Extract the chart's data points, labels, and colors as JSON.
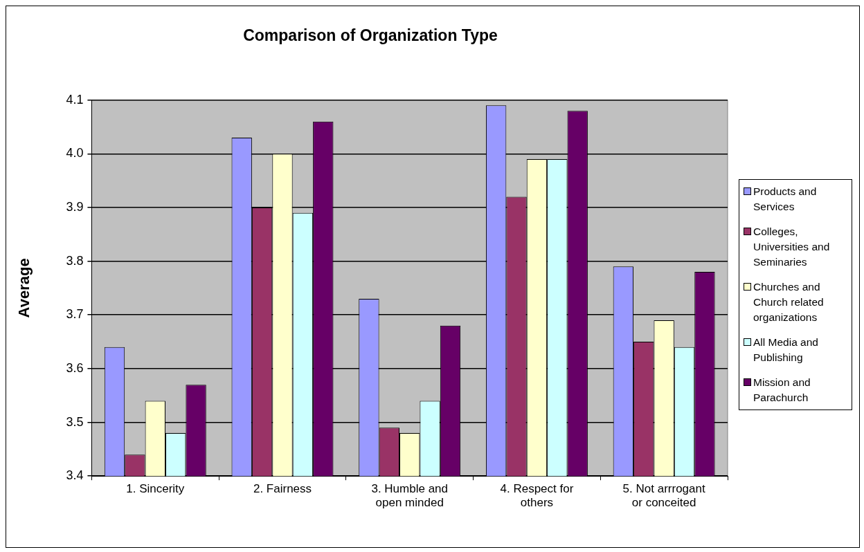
{
  "chart_data": {
    "type": "bar",
    "title": "Comparison of Organization Type",
    "ylabel": "Average",
    "categories": [
      "1. Sincerity",
      "2. Fairness",
      "3. Humble and open minded",
      "4. Respect for others",
      "5. Not arrrogant or conceited"
    ],
    "series": [
      {
        "name": "Products and Services",
        "color": "#9999ff",
        "values": [
          3.64,
          4.03,
          3.73,
          4.09,
          3.79
        ]
      },
      {
        "name": "Colleges, Universities and Seminaries",
        "color": "#993366",
        "values": [
          3.44,
          3.9,
          3.49,
          3.92,
          3.65
        ]
      },
      {
        "name": "Churches and Church related organizations",
        "color": "#ffffcc",
        "values": [
          3.54,
          4.0,
          3.48,
          3.99,
          3.69
        ]
      },
      {
        "name": "All Media and Publishing",
        "color": "#ccffff",
        "values": [
          3.48,
          3.89,
          3.54,
          3.99,
          3.64
        ]
      },
      {
        "name": "Mission and Parachurch",
        "color": "#660066",
        "values": [
          3.57,
          4.06,
          3.68,
          4.08,
          3.78
        ]
      }
    ],
    "ylim": [
      3.4,
      4.1
    ],
    "yticks": [
      {
        "value": 3.4,
        "label": "3.4"
      },
      {
        "value": 3.5,
        "label": "3.5"
      },
      {
        "value": 3.6,
        "label": "3.6"
      },
      {
        "value": 3.7,
        "label": "3.7"
      },
      {
        "value": 3.8,
        "label": "3.8"
      },
      {
        "value": 3.9,
        "label": "3.9"
      },
      {
        "value": 4.0,
        "label": "4.0"
      },
      {
        "value": 4.1,
        "label": "4.1"
      }
    ],
    "grid": "y",
    "legend": "right"
  }
}
